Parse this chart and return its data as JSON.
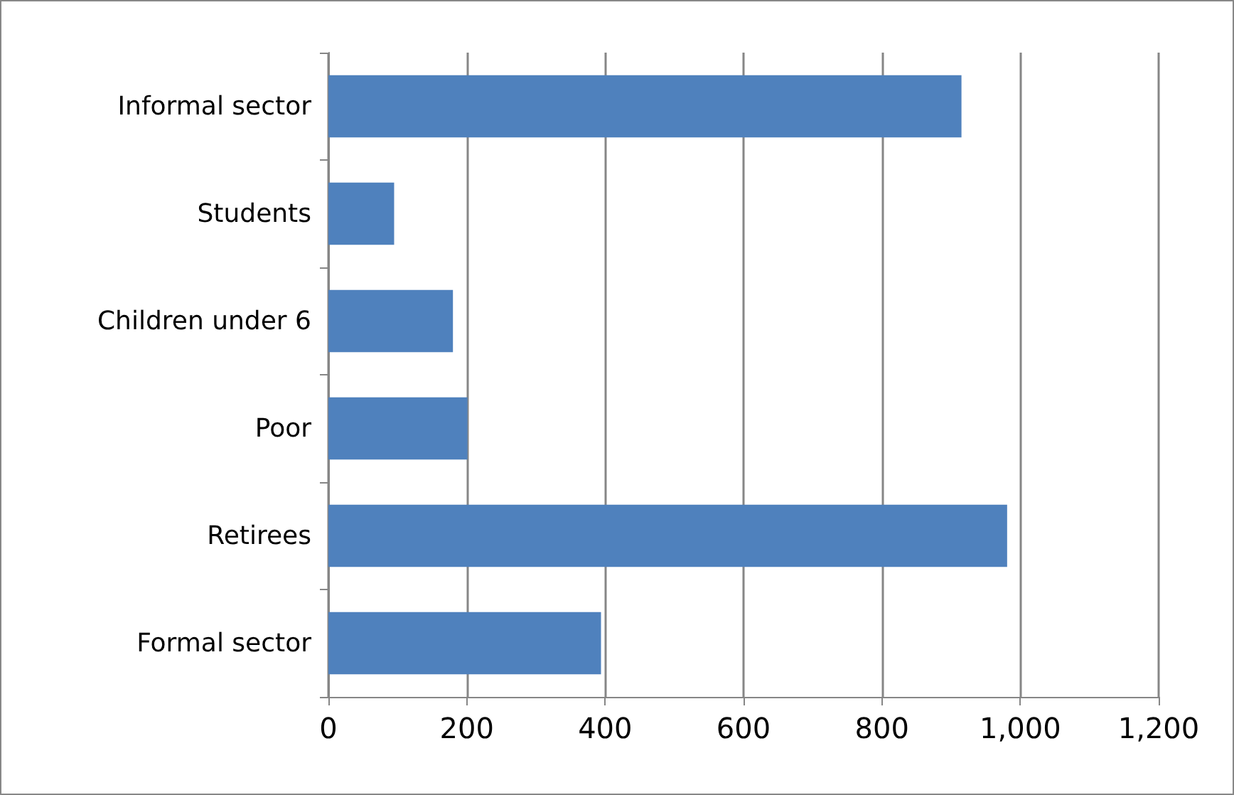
{
  "chart_data": {
    "type": "bar",
    "orientation": "horizontal",
    "categories": [
      "Informal sector",
      "Students",
      "Children under 6",
      "Poor",
      "Retirees",
      "Formal sector"
    ],
    "values": [
      915,
      95,
      180,
      201,
      981,
      394
    ],
    "color": "#4f81bd",
    "xlim": [
      0,
      1200
    ],
    "xticks": [
      0,
      200,
      400,
      600,
      800,
      {
        "value": 1000,
        "label": "1,000"
      },
      {
        "value": 1200,
        "label": "1,200"
      }
    ],
    "grid": "x"
  }
}
